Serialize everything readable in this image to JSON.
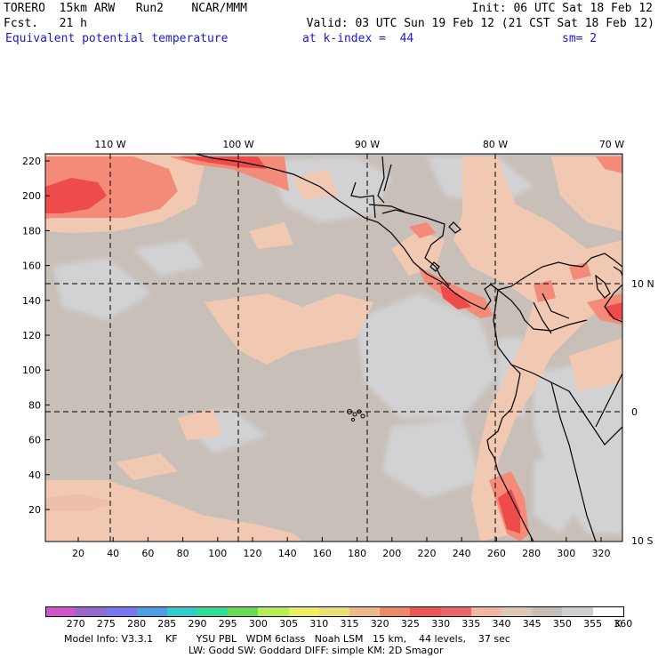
{
  "header": {
    "line1_left": "TORERO  15km ARW   Run2    NCAR/MMM",
    "line1_right": "Init: 06 UTC Sat 18 Feb 12",
    "line2_left": "Fcst.   21 h",
    "line2_right": "Valid: 03 UTC Sun 19 Feb 12 (21 CST Sat 18 Feb 12)",
    "field_name": "Equivalent potential temperature",
    "level": "at k-index =  44",
    "smoothing": "sm= 2"
  },
  "map": {
    "top_lon_labels": [
      "110 W",
      "100 W",
      "90 W",
      "80 W",
      "70 W"
    ],
    "right_lat_labels": [
      "10 N",
      "0",
      "10 S"
    ],
    "y_grid_labels": [
      "220",
      "200",
      "180",
      "160",
      "140",
      "120",
      "100",
      "80",
      "60",
      "40",
      "20"
    ],
    "x_grid_labels": [
      "20",
      "40",
      "60",
      "80",
      "100",
      "120",
      "140",
      "160",
      "180",
      "200",
      "220",
      "240",
      "260",
      "280",
      "300",
      "320"
    ],
    "background_color": "#c8bfb8",
    "land_note_islands": "Galapagos"
  },
  "colorbar": {
    "unit": "K",
    "levels": [
      "270",
      "275",
      "280",
      "285",
      "290",
      "295",
      "300",
      "305",
      "310",
      "315",
      "320",
      "325",
      "330",
      "335",
      "340",
      "345",
      "350",
      "355",
      "360"
    ],
    "colors": [
      "#cc55cc",
      "#9966cc",
      "#7777ee",
      "#4f9fe6",
      "#33cccc",
      "#33dd99",
      "#66dd55",
      "#b4ee55",
      "#eeee66",
      "#eedd77",
      "#eebb88",
      "#ee8866",
      "#ee5555",
      "#f06666",
      "#f2b6a0",
      "#ddc8b8",
      "#c8bfb8",
      "#d0d0d0",
      "#ffffff"
    ]
  },
  "footer": {
    "line1": "Model Info: V3.3.1    KF      YSU PBL   WDM 6class   Noah LSM   15 km,    44 levels,    37 sec",
    "line2": "LW: Godd SW: Goddard DIFF: simple KM: 2D Smagor"
  }
}
